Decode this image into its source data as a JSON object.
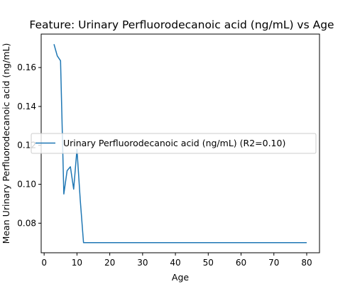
{
  "chart_data": {
    "type": "line",
    "title": "Feature: Urinary Perfluorodecanoic acid (ng/mL) vs Age",
    "xlabel": "Age",
    "ylabel": "Mean Urinary Perfluorodecanoic acid (ng/mL)",
    "xlim": [
      -0.9,
      83.9
    ],
    "ylim": [
      0.0648,
      0.1772
    ],
    "xticks": [
      0,
      10,
      20,
      30,
      40,
      50,
      60,
      70,
      80
    ],
    "yticks": [
      0.08,
      0.1,
      0.12,
      0.14,
      0.16
    ],
    "ytick_labels": [
      "0.08",
      "0.10",
      "0.12",
      "0.14",
      "0.16"
    ],
    "grid": false,
    "legend_position": "center-left",
    "series": [
      {
        "name": "Urinary Perfluorodecanoic acid (ng/mL) (R2=0.10)",
        "color": "#1f77b4",
        "x": [
          3,
          4,
          5,
          6,
          7,
          8,
          9,
          10,
          11,
          12,
          13,
          14,
          15,
          16,
          17,
          18,
          19,
          20,
          25,
          30,
          35,
          40,
          45,
          50,
          55,
          60,
          65,
          70,
          75,
          80
        ],
        "y": [
          0.172,
          0.166,
          0.1635,
          0.095,
          0.107,
          0.109,
          0.0975,
          0.118,
          0.092,
          0.07,
          0.07,
          0.07,
          0.07,
          0.07,
          0.07,
          0.07,
          0.07,
          0.07,
          0.07,
          0.07,
          0.07,
          0.07,
          0.07,
          0.07,
          0.07,
          0.07,
          0.07,
          0.07,
          0.07,
          0.07
        ]
      }
    ]
  }
}
